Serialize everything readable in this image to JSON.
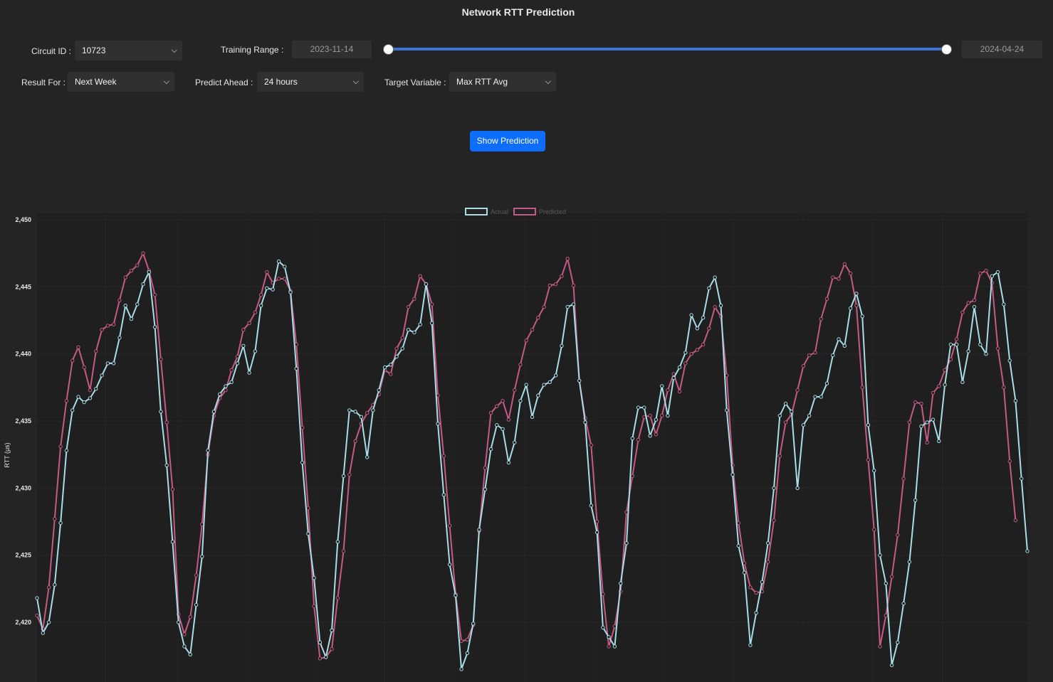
{
  "page": {
    "title": "Network RTT Prediction"
  },
  "controls": {
    "circuit": {
      "label": "Circuit ID :",
      "value": "10723"
    },
    "training_range": {
      "label": "Training Range :",
      "start": "2023-11-14",
      "end": "2024-04-24"
    },
    "result_for": {
      "label": "Result For :",
      "value": "Next Week"
    },
    "predict_ahead": {
      "label": "Predict Ahead :",
      "value": "24 hours"
    },
    "target_variable": {
      "label": "Target Variable :",
      "value": "Max RTT Avg"
    },
    "show_button": "Show Prediction"
  },
  "icons": {
    "select": "chevron-down-icon"
  },
  "colors": {
    "actual": "#a9dde6",
    "predicted": "#c55b82",
    "button": "#0d6efd",
    "slider": "#3d73d6"
  },
  "chart_data": {
    "type": "line",
    "title": "",
    "xlabel": "",
    "ylabel": "RTT (µs)",
    "ylim": [
      2417,
      2450.5
    ],
    "yticks": [
      2420,
      2425,
      2430,
      2435,
      2440,
      2445,
      2450
    ],
    "ytick_labels": [
      "2,420",
      "2,425",
      "2,430",
      "2,435",
      "2,440",
      "2,445",
      "2,450"
    ],
    "legend": "top-center",
    "grid": true,
    "series": [
      {
        "name": "Actual",
        "values": [
          2421.8,
          2419.2,
          2420.0,
          2422.8,
          2427.4,
          2432.8,
          2435.8,
          2436.8,
          2436.4,
          2436.7,
          2437.4,
          2438.4,
          2439.3,
          2439.3,
          2441.2,
          2443.6,
          2442.6,
          2443.7,
          2445.2,
          2446.1,
          2442.0,
          2435.7,
          2431.7,
          2426.0,
          2420.0,
          2418.2,
          2417.6,
          2421.3,
          2424.9,
          2432.8,
          2435.7,
          2437.0,
          2437.6,
          2437.9,
          2439.3,
          2440.6,
          2438.6,
          2440.2,
          2443.6,
          2444.9,
          2444.8,
          2446.9,
          2446.5,
          2444.6,
          2438.9,
          2431.9,
          2426.6,
          2423.3,
          2418.5,
          2417.4,
          2419.4,
          2426.0,
          2430.9,
          2435.8,
          2435.7,
          2435.3,
          2432.3,
          2435.8,
          2437.3,
          2439.0,
          2439.2,
          2439.8,
          2440.4,
          2441.8,
          2441.6,
          2442.2,
          2445.2,
          2442.3,
          2434.8,
          2429.5,
          2424.3,
          2422.0,
          2416.5,
          2417.7,
          2419.9,
          2426.9,
          2429.9,
          2432.9,
          2434.7,
          2434.4,
          2431.9,
          2433.4,
          2436.5,
          2437.7,
          2435.3,
          2436.9,
          2437.7,
          2437.9,
          2438.4,
          2440.6,
          2443.5,
          2443.7,
          2438.0,
          2434.9,
          2428.7,
          2426.7,
          2419.6,
          2418.9,
          2418.2,
          2422.9,
          2425.9,
          2433.7,
          2436.0,
          2436.0,
          2433.9,
          2435.1,
          2437.6,
          2435.4,
          2438.2,
          2439.0,
          2440.1,
          2442.9,
          2441.9,
          2442.7,
          2444.9,
          2445.7,
          2443.6,
          2435.8,
          2431.0,
          2425.7,
          2423.7,
          2418.3,
          2420.7,
          2423.0,
          2425.9,
          2430.0,
          2435.4,
          2436.3,
          2435.7,
          2430.0,
          2434.7,
          2435.4,
          2436.8,
          2436.8,
          2437.8,
          2439.9,
          2441.1,
          2440.6,
          2443.4,
          2444.5,
          2442.8,
          2434.7,
          2431.3,
          2425.0,
          2422.9,
          2416.8,
          2418.5,
          2421.4,
          2424.5,
          2429.1,
          2434.6,
          2434.9,
          2435.1,
          2433.5,
          2437.7,
          2440.7,
          2440.7,
          2437.9,
          2440.2,
          2443.5,
          2440.7,
          2440.0,
          2445.8,
          2446.1,
          2443.7,
          2439.5,
          2436.5,
          2430.7,
          2425.3
        ]
      },
      {
        "name": "Predicted",
        "values": [
          2420.5,
          2419.5,
          2422.6,
          2427.7,
          2433.1,
          2436.5,
          2439.5,
          2440.5,
          2439.0,
          2437.3,
          2440.2,
          2441.8,
          2442.1,
          2442.2,
          2444.0,
          2445.7,
          2446.2,
          2446.6,
          2447.5,
          2446.2,
          2444.4,
          2439.6,
          2434.9,
          2429.9,
          2420.6,
          2419.1,
          2420.4,
          2423.5,
          2427.3,
          2432.5,
          2435.4,
          2436.7,
          2437.3,
          2438.8,
          2439.8,
          2441.8,
          2442.3,
          2443.1,
          2444.4,
          2446.1,
          2445.3,
          2445.6,
          2445.6,
          2444.7,
          2440.7,
          2434.5,
          2428.5,
          2421.2,
          2417.3,
          2417.4,
          2418.0,
          2421.8,
          2425.3,
          2431.0,
          2433.5,
          2434.8,
          2435.6,
          2436.2,
          2437.0,
          2438.8,
          2438.5,
          2440.4,
          2441.2,
          2443.5,
          2444.1,
          2445.8,
          2445.2,
          2443.7,
          2436.9,
          2432.4,
          2427.2,
          2422.1,
          2418.6,
          2418.7,
          2419.8,
          2426.8,
          2431.5,
          2435.6,
          2436.1,
          2436.5,
          2435.1,
          2437.3,
          2439.2,
          2441.0,
          2441.8,
          2442.7,
          2443.5,
          2445.1,
          2445.2,
          2445.8,
          2447.1,
          2445.1,
          2438.0,
          2435.2,
          2433.2,
          2427.5,
          2422.1,
          2418.2,
          2419.7,
          2422.3,
          2428.2,
          2430.9,
          2433.6,
          2435.3,
          2435.4,
          2434.0,
          2435.4,
          2437.3,
          2438.5,
          2437.2,
          2439.3,
          2440.0,
          2440.3,
          2440.7,
          2441.9,
          2443.5,
          2442.8,
          2438.4,
          2431.7,
          2427.4,
          2424.4,
          2422.6,
          2422.2,
          2422.3,
          2424.5,
          2427.6,
          2432.4,
          2434.9,
          2435.5,
          2437.3,
          2439.1,
          2439.9,
          2440.1,
          2442.6,
          2444.1,
          2445.7,
          2445.6,
          2446.7,
          2446.0,
          2443.6,
          2437.5,
          2432.1,
          2426.9,
          2418.2,
          2420.5,
          2423.4,
          2426.5,
          2430.7,
          2434.9,
          2436.4,
          2436.3,
          2433.4,
          2437.1,
          2437.6,
          2438.8,
          2439.6,
          2441.1,
          2443.1,
          2443.8,
          2444.0,
          2446.0,
          2446.2,
          2445.3,
          2440.4,
          2437.5,
          2432.0,
          2427.6
        ]
      }
    ]
  }
}
